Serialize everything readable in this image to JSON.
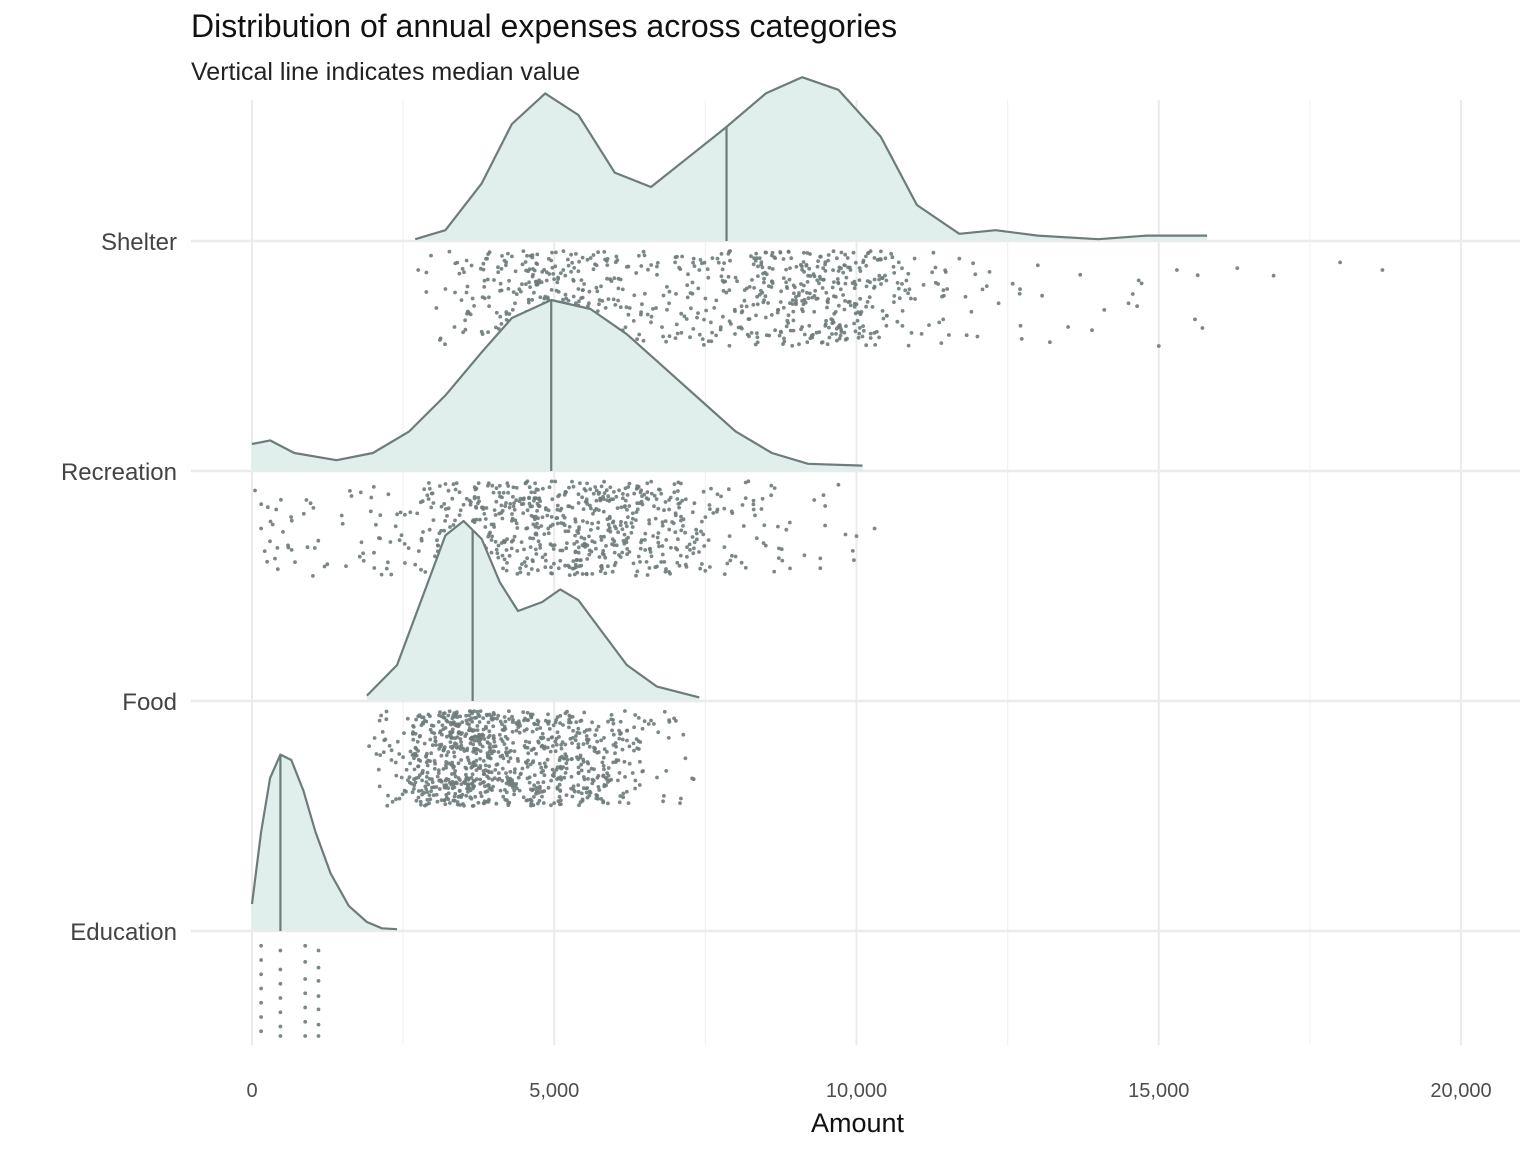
{
  "chart_data": {
    "type": "raincloud",
    "title": "Distribution of annual expenses across categories",
    "subtitle": "Vertical line indicates median value",
    "xlabel": "Amount",
    "ylabel": "",
    "xlim": [
      -1000,
      21000
    ],
    "xticks": [
      0,
      5000,
      10000,
      15000,
      20000
    ],
    "xtick_labels": [
      "0",
      "5,000",
      "10,000",
      "15,000",
      "20,000"
    ],
    "grid": true,
    "legend": "none",
    "colors": {
      "fill": "#e0eeec",
      "line": "#6e7b7b",
      "point": "#6e7b7b",
      "grid": "#ebebeb"
    },
    "categories": [
      "Shelter",
      "Recreation",
      "Food",
      "Education"
    ],
    "series": [
      {
        "name": "Shelter",
        "median": 7850,
        "range": [
          2700,
          15800
        ],
        "density": [
          [
            2700,
            0.01
          ],
          [
            3200,
            0.06
          ],
          [
            3800,
            0.32
          ],
          [
            4300,
            0.65
          ],
          [
            4850,
            0.82
          ],
          [
            5400,
            0.7
          ],
          [
            6000,
            0.38
          ],
          [
            6600,
            0.3
          ],
          [
            7200,
            0.46
          ],
          [
            7800,
            0.62
          ],
          [
            8500,
            0.82
          ],
          [
            9100,
            0.91
          ],
          [
            9700,
            0.84
          ],
          [
            10400,
            0.58
          ],
          [
            11000,
            0.2
          ],
          [
            11700,
            0.04
          ],
          [
            12300,
            0.06
          ],
          [
            13000,
            0.03
          ],
          [
            14000,
            0.01
          ],
          [
            14800,
            0.03
          ],
          [
            15800,
            0.03
          ]
        ],
        "points": [
          [
            2750,
            0.2
          ],
          [
            3050,
            0.6
          ],
          [
            3120,
            0.92
          ],
          [
            3200,
            0.4
          ],
          [
            3350,
            0.8
          ],
          [
            3550,
            0.1
          ],
          [
            3650,
            0.5
          ],
          [
            3800,
            0.85
          ],
          [
            3900,
            0.3
          ],
          [
            4050,
            0.65
          ],
          [
            4200,
            0.15
          ],
          [
            4350,
            0.55
          ],
          [
            4450,
            0.95
          ],
          [
            4550,
            0.05
          ],
          [
            4600,
            0.38
          ],
          [
            4700,
            0.72
          ],
          [
            4800,
            0.22
          ],
          [
            4850,
            0.48
          ],
          [
            4900,
            0.88
          ],
          [
            4950,
            0.1
          ],
          [
            5000,
            0.6
          ],
          [
            5050,
            0.33
          ],
          [
            5100,
            0.78
          ],
          [
            5150,
            0.2
          ],
          [
            5200,
            0.5
          ],
          [
            5300,
            0.92
          ],
          [
            5400,
            0.4
          ],
          [
            5500,
            0.68
          ],
          [
            5700,
            0.15
          ],
          [
            5900,
            0.85
          ],
          [
            6100,
            0.3
          ],
          [
            6250,
            0.6
          ],
          [
            6400,
            0.05
          ],
          [
            6500,
            0.45
          ],
          [
            6600,
            0.75
          ],
          [
            6700,
            0.25
          ],
          [
            6800,
            0.9
          ],
          [
            6900,
            0.55
          ],
          [
            7000,
            0.12
          ],
          [
            7100,
            0.66
          ],
          [
            7200,
            0.36
          ],
          [
            7300,
            0.82
          ],
          [
            7400,
            0.2
          ],
          [
            7500,
            0.5
          ],
          [
            7600,
            0.95
          ],
          [
            7700,
            0.08
          ],
          [
            7800,
            0.42
          ],
          [
            7900,
            0.74
          ],
          [
            8000,
            0.28
          ],
          [
            8100,
            0.58
          ],
          [
            8200,
            0.88
          ],
          [
            8300,
            0.14
          ],
          [
            8400,
            0.46
          ],
          [
            8500,
            0.7
          ],
          [
            8600,
            0.32
          ],
          [
            8700,
            0.62
          ],
          [
            8800,
            0.92
          ],
          [
            8900,
            0.18
          ],
          [
            9000,
            0.52
          ],
          [
            9100,
            0.8
          ],
          [
            9200,
            0.26
          ],
          [
            9300,
            0.64
          ],
          [
            9400,
            0.06
          ],
          [
            9500,
            0.44
          ],
          [
            9600,
            0.76
          ],
          [
            9700,
            0.34
          ],
          [
            9800,
            0.86
          ],
          [
            9900,
            0.2
          ],
          [
            10000,
            0.56
          ],
          [
            10100,
            0.9
          ],
          [
            10300,
            0.3
          ],
          [
            10500,
            0.68
          ],
          [
            10700,
            0.12
          ],
          [
            10900,
            0.5
          ],
          [
            11200,
            0.78
          ],
          [
            11500,
            0.4
          ],
          [
            11700,
            0.08
          ],
          [
            11900,
            0.64
          ],
          [
            12000,
            0.9
          ],
          [
            12200,
            0.22
          ],
          [
            12350,
            0.55
          ],
          [
            12700,
            0.45
          ],
          [
            13000,
            0.15
          ],
          [
            13200,
            0.96
          ],
          [
            13500,
            0.8
          ],
          [
            13700,
            0.25
          ],
          [
            14100,
            0.62
          ],
          [
            14500,
            0.55
          ],
          [
            15000,
            1.0
          ],
          [
            15300,
            0.2
          ],
          [
            15600,
            0.72
          ],
          [
            16300,
            0.18
          ],
          [
            16900,
            0.26
          ],
          [
            18000,
            0.12
          ],
          [
            18700,
            0.2
          ]
        ]
      },
      {
        "name": "Recreation",
        "median": 4950,
        "range": [
          0,
          10100
        ],
        "density": [
          [
            0,
            0.15
          ],
          [
            300,
            0.17
          ],
          [
            700,
            0.1
          ],
          [
            1400,
            0.06
          ],
          [
            2000,
            0.1
          ],
          [
            2600,
            0.22
          ],
          [
            3200,
            0.42
          ],
          [
            3800,
            0.66
          ],
          [
            4300,
            0.85
          ],
          [
            4950,
            0.95
          ],
          [
            5600,
            0.9
          ],
          [
            6200,
            0.76
          ],
          [
            6800,
            0.58
          ],
          [
            7400,
            0.4
          ],
          [
            8000,
            0.22
          ],
          [
            8600,
            0.1
          ],
          [
            9200,
            0.04
          ],
          [
            10100,
            0.03
          ]
        ],
        "points": [
          [
            50,
            0.1
          ],
          [
            150,
            0.5
          ],
          [
            250,
            0.85
          ],
          [
            400,
            0.3
          ],
          [
            600,
            0.7
          ],
          [
            900,
            0.2
          ],
          [
            1200,
            0.9
          ],
          [
            1500,
            0.45
          ],
          [
            1800,
            0.12
          ],
          [
            2100,
            0.6
          ],
          [
            2400,
            0.35
          ],
          [
            2700,
            0.88
          ],
          [
            2900,
            0.15
          ],
          [
            3100,
            0.55
          ],
          [
            3300,
            0.78
          ],
          [
            3500,
            0.25
          ],
          [
            3700,
            0.62
          ],
          [
            3900,
            0.92
          ],
          [
            4100,
            0.05
          ],
          [
            4300,
            0.42
          ],
          [
            4500,
            0.72
          ],
          [
            4700,
            0.18
          ],
          [
            4900,
            0.5
          ],
          [
            5100,
            0.84
          ],
          [
            5300,
            0.28
          ],
          [
            5500,
            0.66
          ],
          [
            5700,
            0.1
          ],
          [
            5900,
            0.46
          ],
          [
            6100,
            0.8
          ],
          [
            6300,
            0.34
          ],
          [
            6500,
            0.62
          ],
          [
            6700,
            0.9
          ],
          [
            6900,
            0.2
          ],
          [
            7100,
            0.52
          ],
          [
            7300,
            0.76
          ],
          [
            7500,
            0.38
          ],
          [
            7700,
            0.14
          ],
          [
            7900,
            0.58
          ],
          [
            8100,
            0.86
          ],
          [
            8300,
            0.3
          ],
          [
            8500,
            0.68
          ],
          [
            8700,
            0.48
          ],
          [
            8900,
            0.92
          ],
          [
            9300,
            0.2
          ],
          [
            9700,
            0.04
          ],
          [
            10000,
            0.58
          ],
          [
            10300,
            0.5
          ]
        ]
      },
      {
        "name": "Food",
        "median": 3650,
        "range": [
          1900,
          7400
        ],
        "density": [
          [
            1900,
            0.03
          ],
          [
            2400,
            0.2
          ],
          [
            2900,
            0.65
          ],
          [
            3200,
            0.92
          ],
          [
            3500,
            1.0
          ],
          [
            3800,
            0.9
          ],
          [
            4100,
            0.66
          ],
          [
            4400,
            0.5
          ],
          [
            4800,
            0.55
          ],
          [
            5100,
            0.62
          ],
          [
            5400,
            0.56
          ],
          [
            5800,
            0.38
          ],
          [
            6200,
            0.2
          ],
          [
            6700,
            0.08
          ],
          [
            7400,
            0.02
          ]
        ],
        "points": [
          [
            2950,
            0.3
          ],
          [
            3050,
            0.8
          ],
          [
            3150,
            0.15
          ],
          [
            3250,
            0.55
          ],
          [
            3350,
            0.9
          ],
          [
            3450,
            0.4
          ],
          [
            3550,
            0.7
          ],
          [
            3650,
            0.2
          ],
          [
            3750,
            0.6
          ],
          [
            3850,
            0.95
          ],
          [
            3950,
            0.5
          ],
          [
            4100,
            0.25
          ],
          [
            4300,
            0.75
          ],
          [
            4500,
            0.1
          ],
          [
            4700,
            0.45
          ],
          [
            4800,
            0.85
          ],
          [
            4900,
            0.3
          ],
          [
            5000,
            0.65
          ],
          [
            5100,
            0.05
          ],
          [
            5200,
            0.55
          ],
          [
            5300,
            0.9
          ],
          [
            5400,
            0.35
          ],
          [
            5500,
            0.72
          ],
          [
            5700,
            0.2
          ],
          [
            5900,
            0.6
          ],
          [
            6200,
            0.85
          ],
          [
            6400,
            0.4
          ],
          [
            6600,
            0.1
          ],
          [
            6700,
            0.7
          ],
          [
            6800,
            0.95
          ]
        ]
      },
      {
        "name": "Education",
        "median": 470,
        "range": [
          0,
          2400
        ],
        "density": [
          [
            0,
            0.15
          ],
          [
            150,
            0.55
          ],
          [
            300,
            0.85
          ],
          [
            470,
            0.98
          ],
          [
            650,
            0.95
          ],
          [
            850,
            0.78
          ],
          [
            1050,
            0.55
          ],
          [
            1300,
            0.32
          ],
          [
            1600,
            0.14
          ],
          [
            1900,
            0.05
          ],
          [
            2150,
            0.015
          ],
          [
            2400,
            0.01
          ]
        ],
        "points": [
          [
            150,
            0.05
          ],
          [
            150,
            0.2
          ],
          [
            150,
            0.35
          ],
          [
            150,
            0.5
          ],
          [
            150,
            0.65
          ],
          [
            150,
            0.8
          ],
          [
            150,
            0.95
          ],
          [
            470,
            0.1
          ],
          [
            470,
            0.3
          ],
          [
            470,
            0.45
          ],
          [
            470,
            0.6
          ],
          [
            470,
            0.75
          ],
          [
            470,
            0.9
          ],
          [
            470,
            1.0
          ],
          [
            880,
            0.05
          ],
          [
            880,
            0.22
          ],
          [
            880,
            0.4
          ],
          [
            880,
            0.55
          ],
          [
            880,
            0.7
          ],
          [
            880,
            0.85
          ],
          [
            880,
            1.0
          ],
          [
            1100,
            0.1
          ],
          [
            1100,
            0.28
          ],
          [
            1100,
            0.42
          ],
          [
            1100,
            0.58
          ],
          [
            1100,
            0.72
          ],
          [
            1100,
            0.88
          ],
          [
            1100,
            1.0
          ]
        ]
      }
    ]
  }
}
